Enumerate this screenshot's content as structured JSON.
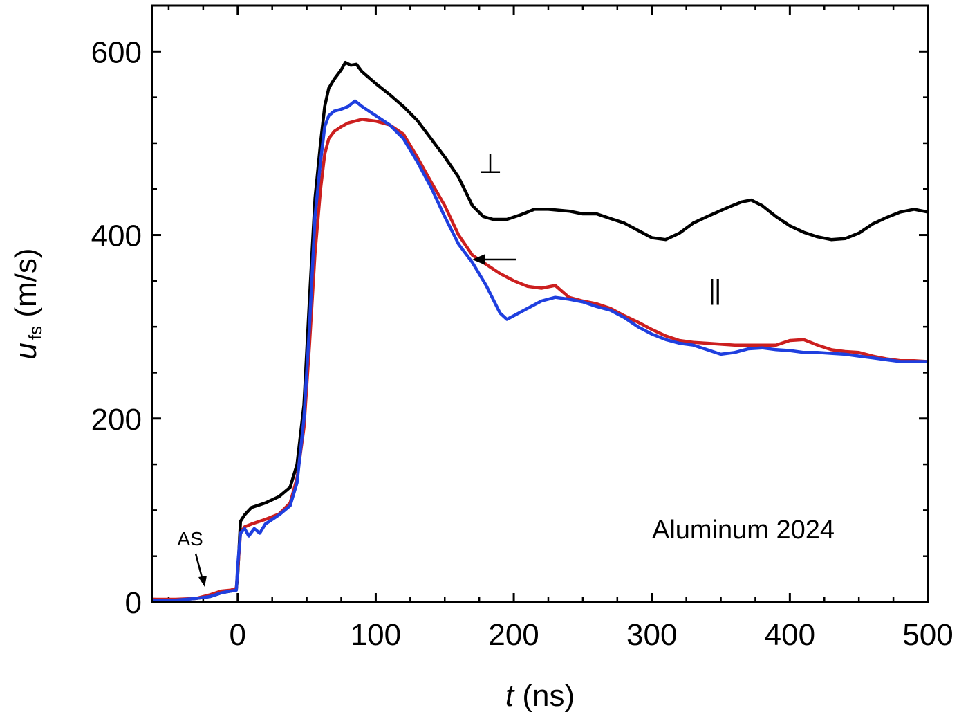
{
  "chart_data": {
    "type": "line",
    "title": "",
    "xlabel": {
      "var": "t",
      "unit": " (ns)"
    },
    "ylabel": {
      "var": "u",
      "sub": "fs",
      "unit": " (m/s)"
    },
    "xlim": [
      -62,
      500
    ],
    "ylim": [
      0,
      650
    ],
    "xticks": [
      0,
      100,
      200,
      300,
      400,
      500
    ],
    "xtick_labels": [
      "0",
      "100",
      "200",
      "300",
      "400",
      "500"
    ],
    "yticks": [
      0,
      200,
      400,
      600
    ],
    "ytick_labels": [
      "0",
      "200",
      "400",
      "600"
    ],
    "x_minor_step": 25,
    "y_minor_step": 50,
    "grid": false,
    "legend": "none",
    "annotations": {
      "material": "Aluminum 2024",
      "as_label": "AS",
      "perp_symbol": "⊥",
      "parallel_symbol": "||"
    },
    "series": [
      {
        "color": "#000000",
        "points": [
          [
            -62,
            3
          ],
          [
            -45,
            2
          ],
          [
            -30,
            4
          ],
          [
            -20,
            6
          ],
          [
            -12,
            10
          ],
          [
            -5,
            12
          ],
          [
            -1,
            14
          ],
          [
            0,
            30
          ],
          [
            2,
            88
          ],
          [
            5,
            95
          ],
          [
            10,
            103
          ],
          [
            20,
            108
          ],
          [
            30,
            115
          ],
          [
            38,
            125
          ],
          [
            43,
            150
          ],
          [
            48,
            215
          ],
          [
            52,
            330
          ],
          [
            56,
            440
          ],
          [
            60,
            500
          ],
          [
            63,
            540
          ],
          [
            66,
            560
          ],
          [
            70,
            570
          ],
          [
            75,
            580
          ],
          [
            78,
            588
          ],
          [
            82,
            585
          ],
          [
            86,
            586
          ],
          [
            90,
            578
          ],
          [
            100,
            565
          ],
          [
            110,
            553
          ],
          [
            120,
            540
          ],
          [
            130,
            525
          ],
          [
            140,
            505
          ],
          [
            150,
            485
          ],
          [
            160,
            463
          ],
          [
            170,
            432
          ],
          [
            178,
            420
          ],
          [
            185,
            417
          ],
          [
            195,
            417
          ],
          [
            205,
            422
          ],
          [
            215,
            428
          ],
          [
            225,
            428
          ],
          [
            240,
            426
          ],
          [
            250,
            423
          ],
          [
            260,
            423
          ],
          [
            270,
            418
          ],
          [
            280,
            413
          ],
          [
            290,
            405
          ],
          [
            300,
            397
          ],
          [
            310,
            395
          ],
          [
            320,
            402
          ],
          [
            330,
            413
          ],
          [
            340,
            420
          ],
          [
            355,
            430
          ],
          [
            365,
            436
          ],
          [
            372,
            438
          ],
          [
            380,
            432
          ],
          [
            390,
            420
          ],
          [
            400,
            410
          ],
          [
            410,
            403
          ],
          [
            420,
            398
          ],
          [
            430,
            395
          ],
          [
            440,
            396
          ],
          [
            450,
            402
          ],
          [
            460,
            412
          ],
          [
            470,
            419
          ],
          [
            480,
            425
          ],
          [
            490,
            428
          ],
          [
            500,
            425
          ]
        ]
      },
      {
        "color": "#cc1f1f",
        "points": [
          [
            -62,
            3
          ],
          [
            -45,
            3
          ],
          [
            -30,
            4
          ],
          [
            -20,
            8
          ],
          [
            -12,
            12
          ],
          [
            -5,
            13
          ],
          [
            -1,
            15
          ],
          [
            0,
            35
          ],
          [
            2,
            75
          ],
          [
            5,
            82
          ],
          [
            10,
            85
          ],
          [
            20,
            90
          ],
          [
            30,
            96
          ],
          [
            38,
            108
          ],
          [
            43,
            135
          ],
          [
            48,
            190
          ],
          [
            52,
            280
          ],
          [
            56,
            380
          ],
          [
            60,
            450
          ],
          [
            63,
            488
          ],
          [
            66,
            505
          ],
          [
            70,
            513
          ],
          [
            75,
            518
          ],
          [
            80,
            522
          ],
          [
            85,
            524
          ],
          [
            90,
            526
          ],
          [
            100,
            524
          ],
          [
            110,
            520
          ],
          [
            120,
            510
          ],
          [
            130,
            485
          ],
          [
            140,
            458
          ],
          [
            150,
            432
          ],
          [
            160,
            400
          ],
          [
            170,
            378
          ],
          [
            180,
            368
          ],
          [
            190,
            358
          ],
          [
            200,
            350
          ],
          [
            210,
            344
          ],
          [
            220,
            342
          ],
          [
            230,
            345
          ],
          [
            240,
            332
          ],
          [
            250,
            328
          ],
          [
            260,
            325
          ],
          [
            270,
            320
          ],
          [
            280,
            312
          ],
          [
            290,
            305
          ],
          [
            300,
            297
          ],
          [
            310,
            290
          ],
          [
            320,
            285
          ],
          [
            330,
            283
          ],
          [
            340,
            282
          ],
          [
            350,
            281
          ],
          [
            360,
            280
          ],
          [
            370,
            280
          ],
          [
            380,
            280
          ],
          [
            390,
            280
          ],
          [
            400,
            285
          ],
          [
            410,
            286
          ],
          [
            420,
            280
          ],
          [
            430,
            275
          ],
          [
            440,
            273
          ],
          [
            450,
            272
          ],
          [
            460,
            268
          ],
          [
            470,
            265
          ],
          [
            480,
            263
          ],
          [
            490,
            263
          ],
          [
            500,
            262
          ]
        ]
      },
      {
        "color": "#1f3fdf",
        "points": [
          [
            -62,
            2
          ],
          [
            -45,
            2
          ],
          [
            -30,
            4
          ],
          [
            -20,
            6
          ],
          [
            -12,
            10
          ],
          [
            -5,
            12
          ],
          [
            -1,
            13
          ],
          [
            0,
            40
          ],
          [
            2,
            75
          ],
          [
            5,
            80
          ],
          [
            8,
            72
          ],
          [
            12,
            80
          ],
          [
            16,
            75
          ],
          [
            20,
            85
          ],
          [
            30,
            95
          ],
          [
            38,
            105
          ],
          [
            43,
            130
          ],
          [
            48,
            200
          ],
          [
            52,
            300
          ],
          [
            56,
            420
          ],
          [
            60,
            480
          ],
          [
            63,
            518
          ],
          [
            66,
            530
          ],
          [
            70,
            535
          ],
          [
            75,
            537
          ],
          [
            80,
            540
          ],
          [
            85,
            546
          ],
          [
            90,
            540
          ],
          [
            100,
            530
          ],
          [
            110,
            520
          ],
          [
            120,
            505
          ],
          [
            130,
            480
          ],
          [
            140,
            452
          ],
          [
            150,
            420
          ],
          [
            160,
            390
          ],
          [
            170,
            370
          ],
          [
            180,
            345
          ],
          [
            190,
            315
          ],
          [
            195,
            308
          ],
          [
            200,
            312
          ],
          [
            210,
            320
          ],
          [
            220,
            328
          ],
          [
            230,
            332
          ],
          [
            240,
            330
          ],
          [
            250,
            327
          ],
          [
            260,
            322
          ],
          [
            270,
            318
          ],
          [
            280,
            310
          ],
          [
            290,
            300
          ],
          [
            300,
            292
          ],
          [
            310,
            286
          ],
          [
            320,
            282
          ],
          [
            330,
            280
          ],
          [
            340,
            275
          ],
          [
            350,
            270
          ],
          [
            360,
            272
          ],
          [
            370,
            276
          ],
          [
            380,
            277
          ],
          [
            390,
            275
          ],
          [
            400,
            274
          ],
          [
            410,
            272
          ],
          [
            420,
            272
          ],
          [
            430,
            271
          ],
          [
            440,
            270
          ],
          [
            450,
            268
          ],
          [
            460,
            266
          ],
          [
            470,
            264
          ],
          [
            480,
            262
          ],
          [
            490,
            262
          ],
          [
            500,
            262
          ]
        ]
      }
    ]
  }
}
